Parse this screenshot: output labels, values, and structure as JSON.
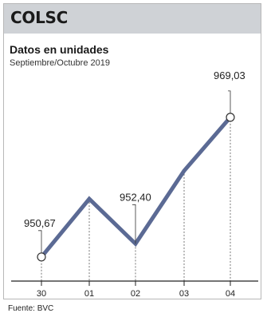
{
  "header": {
    "ticker": "COLSC"
  },
  "footer": {
    "source": "Fuente: BVC"
  },
  "colors": {
    "line": "#5b6a94",
    "header_bg": "#cfd2d6",
    "axis": "#222222"
  },
  "chart_data": {
    "type": "line",
    "title": "Datos en unidades",
    "subtitle": "Septiembre/Octubre 2019",
    "categories": [
      "30",
      "01",
      "02",
      "03",
      "04"
    ],
    "series": [
      {
        "values": [
          950.67,
          958.3,
          952.4,
          962.0,
          969.03
        ]
      }
    ],
    "labels": [
      {
        "index": 0,
        "text": "950,67"
      },
      {
        "index": 2,
        "text": "952,40"
      },
      {
        "index": 4,
        "text": "969,03"
      }
    ],
    "ylim": [
      947.5,
      975
    ],
    "grid": "dashed vertical lines at each category"
  }
}
